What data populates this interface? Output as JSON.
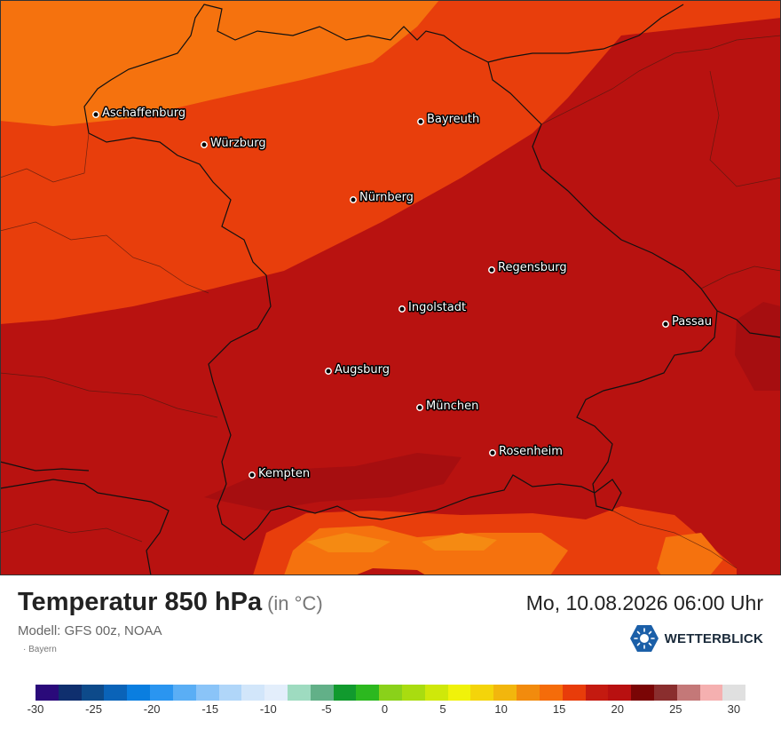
{
  "map": {
    "region_label": "Bayern",
    "cities": [
      {
        "name": "Aschaffenburg"
      },
      {
        "name": "Würzburg"
      },
      {
        "name": "Bayreuth"
      },
      {
        "name": "Nürnberg"
      },
      {
        "name": "Regensburg"
      },
      {
        "name": "Ingolstadt"
      },
      {
        "name": "Passau"
      },
      {
        "name": "Augsburg"
      },
      {
        "name": "München"
      },
      {
        "name": "Rosenheim"
      },
      {
        "name": "Kempten"
      }
    ]
  },
  "header": {
    "title": "Temperatur 850 hPa",
    "unit": "(in °C)",
    "datetime": "Mo, 10.08.2026 06:00 Uhr",
    "model": "Modell: GFS 00z, NOAA",
    "brand": "WETTERBLICK"
  },
  "legend": {
    "colors": [
      "#2a0a7a",
      "#0f2f6e",
      "#0d4a8a",
      "#0a63b8",
      "#0a7ee0",
      "#2a95f0",
      "#5aaef5",
      "#8ac4f8",
      "#b0d6f9",
      "#d2e6fa",
      "#e3eefb",
      "#9edbc0",
      "#62b088",
      "#119a2e",
      "#2cb81f",
      "#8ad11a",
      "#a9dc10",
      "#cfe80a",
      "#f0f20a",
      "#f4d40a",
      "#f2b60d",
      "#f28b0d",
      "#f56c0a",
      "#e83c0a",
      "#c41a10",
      "#b81010",
      "#7a0505",
      "#8a2e2e",
      "#c47878",
      "#f5b0b0",
      "#e0e0e0"
    ],
    "ticks": [
      "-30",
      "-25",
      "-20",
      "-15",
      "-10",
      "-5",
      "0",
      "5",
      "10",
      "15",
      "20",
      "25",
      "30"
    ],
    "range": [
      -30,
      31
    ],
    "tick_values": [
      -30,
      -25,
      -20,
      -15,
      -10,
      -5,
      0,
      5,
      10,
      15,
      20,
      25,
      30
    ]
  },
  "zone_colors": {
    "zone_16": "#f5720e",
    "zone_18": "#e83e0c",
    "zone_20": "#b81210",
    "zone_21": "#a60e10",
    "zone_15": "#f58a12"
  }
}
